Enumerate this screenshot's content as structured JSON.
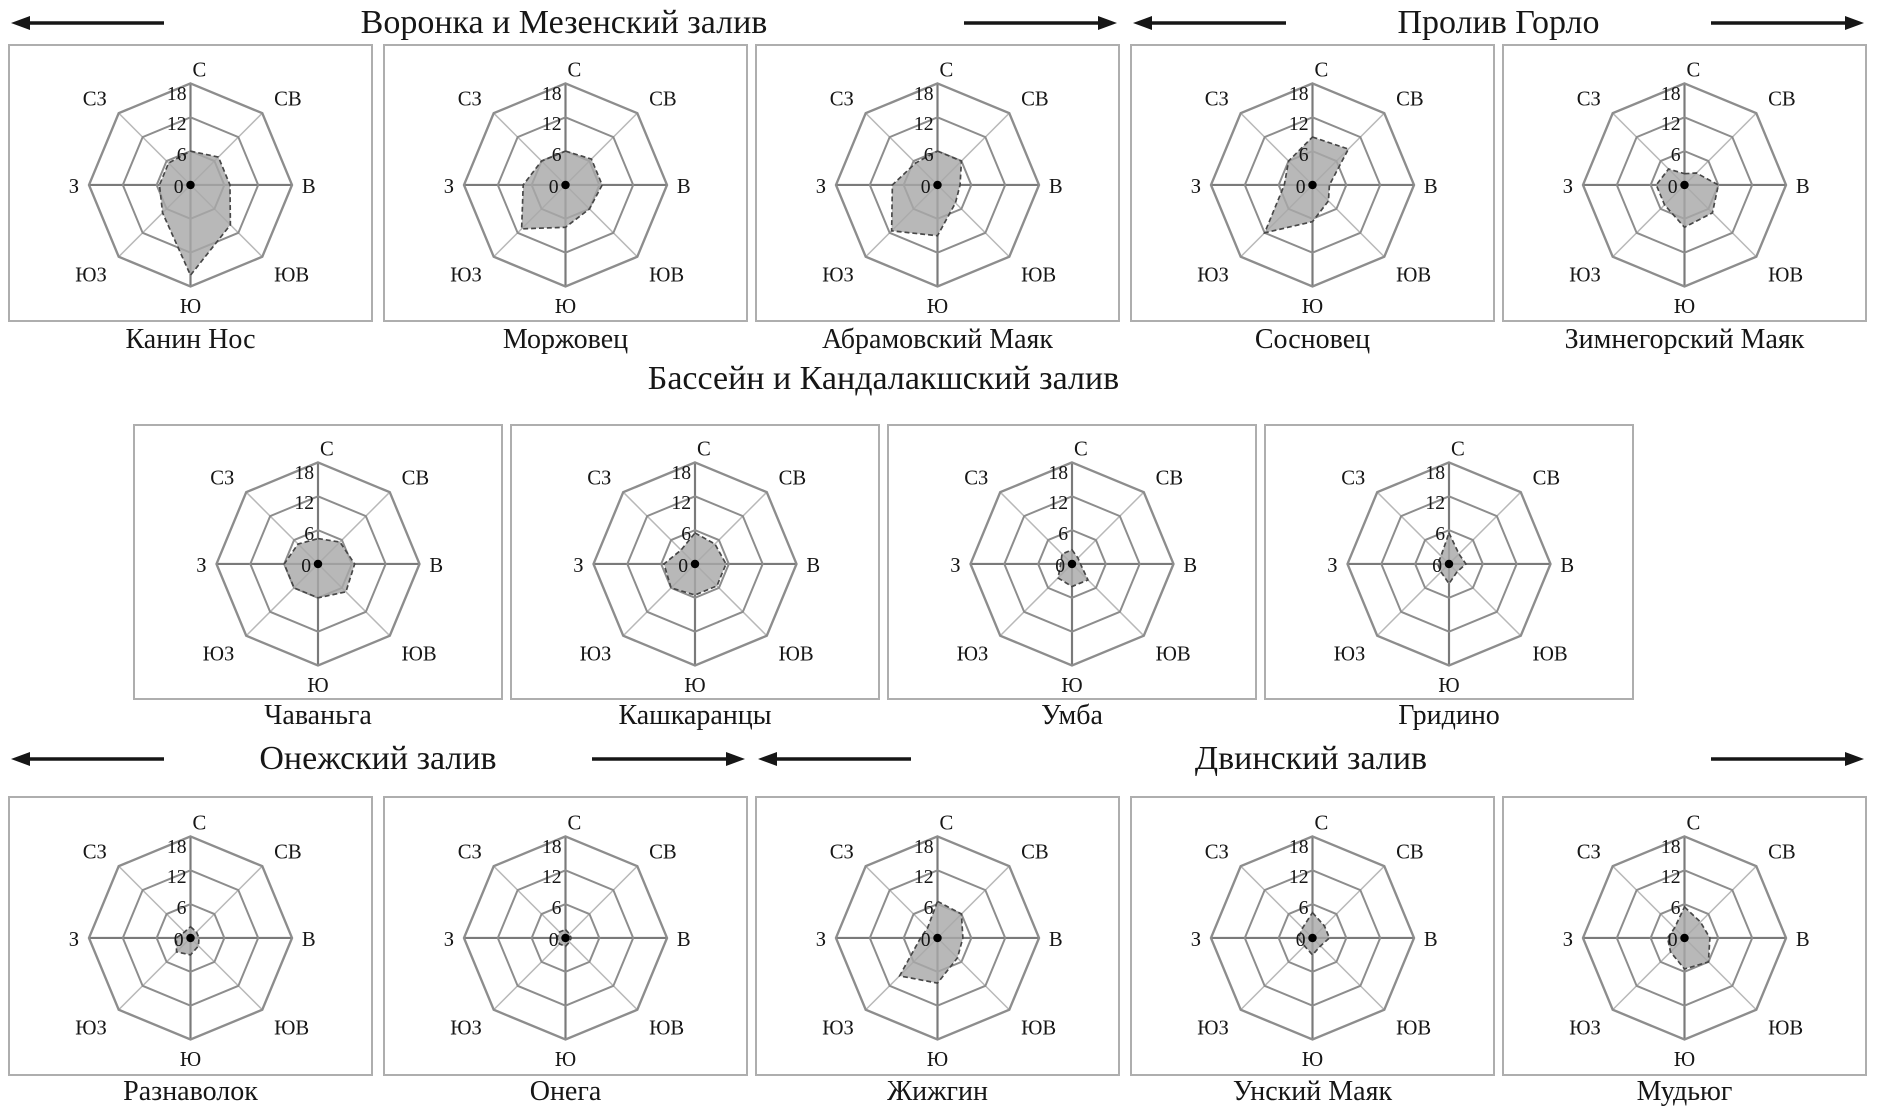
{
  "figure": {
    "directions": [
      "С",
      "СВ",
      "В",
      "ЮВ",
      "Ю",
      "ЮЗ",
      "З",
      "СЗ"
    ],
    "r_ticks": [
      0,
      6,
      12,
      18
    ],
    "r_max": 18,
    "colors": {
      "polygon_fill": "#a8a8a8",
      "polygon_stroke": "#474747",
      "ring_grid": "#8d8d8d",
      "main_axis": "#7a7a7a",
      "diagonal_axis": "#b8b8b8",
      "text": "#161616",
      "box_border": "#aeaeae"
    }
  },
  "regions": [
    {
      "title": "Воронка и Мезенский залив"
    },
    {
      "title": "Пролив Горло"
    },
    {
      "title": "Бассейн и Кандалакшский залив"
    },
    {
      "title": "Онежский залив"
    },
    {
      "title": "Двинский залив"
    }
  ],
  "chart_data": [
    {
      "type": "radar",
      "title": "Канин Нос",
      "region": "Воронка и Мезенский залив",
      "categories": [
        "С",
        "СВ",
        "В",
        "ЮВ",
        "Ю",
        "ЮЗ",
        "З",
        "СЗ"
      ],
      "values": [
        6,
        7,
        7,
        10,
        16,
        7,
        5.5,
        5.5
      ],
      "r_ticks": [
        0,
        6,
        12,
        18
      ],
      "r_max": 18
    },
    {
      "type": "radar",
      "title": "Моржовец",
      "region": "Воронка и Мезенский залив",
      "categories": [
        "С",
        "СВ",
        "В",
        "ЮВ",
        "Ю",
        "ЮЗ",
        "З",
        "СЗ"
      ],
      "values": [
        6,
        6.5,
        6.5,
        6,
        7.5,
        11,
        7.5,
        6
      ],
      "r_ticks": [
        0,
        6,
        12,
        18
      ],
      "r_max": 18
    },
    {
      "type": "radar",
      "title": "Абрамовский Маяк",
      "region": "Воронка и Мезенский залив",
      "categories": [
        "С",
        "СВ",
        "В",
        "ЮВ",
        "Ю",
        "ЮЗ",
        "З",
        "СЗ"
      ],
      "values": [
        6,
        6,
        4,
        4.5,
        9,
        11.5,
        8,
        5.5
      ],
      "r_ticks": [
        0,
        6,
        12,
        18
      ],
      "r_max": 18
    },
    {
      "type": "radar",
      "title": "Сосновец",
      "region": "Пролив Горло",
      "categories": [
        "С",
        "СВ",
        "В",
        "ЮВ",
        "Ю",
        "ЮЗ",
        "З",
        "СЗ"
      ],
      "values": [
        8.5,
        9,
        3,
        4,
        6.5,
        12,
        5,
        6
      ],
      "r_ticks": [
        0,
        6,
        12,
        18
      ],
      "r_max": 18
    },
    {
      "type": "radar",
      "title": "Зимнегорский Маяк",
      "region": "Пролив Горло",
      "categories": [
        "С",
        "СВ",
        "В",
        "ЮВ",
        "Ю",
        "ЮЗ",
        "З",
        "СЗ"
      ],
      "values": [
        2,
        3,
        6,
        7,
        7.5,
        5,
        5,
        4
      ],
      "r_ticks": [
        0,
        6,
        12,
        18
      ],
      "r_max": 18
    },
    {
      "type": "radar",
      "title": "Чаваньга",
      "region": "Бассейн и Кандалакшский залив",
      "categories": [
        "С",
        "СВ",
        "В",
        "ЮВ",
        "Ю",
        "ЮЗ",
        "З",
        "СЗ"
      ],
      "values": [
        4.5,
        5.5,
        6.5,
        7,
        6,
        6,
        6,
        5
      ],
      "r_ticks": [
        0,
        6,
        12,
        18
      ],
      "r_max": 18
    },
    {
      "type": "radar",
      "title": "Кашкаранцы",
      "region": "Бассейн и Кандалакшский залив",
      "categories": [
        "С",
        "СВ",
        "В",
        "ЮВ",
        "Ю",
        "ЮЗ",
        "З",
        "СЗ"
      ],
      "values": [
        5.5,
        5,
        5.5,
        5.5,
        5.5,
        6,
        5.5,
        3.5
      ],
      "r_ticks": [
        0,
        6,
        12,
        18
      ],
      "r_max": 18
    },
    {
      "type": "radar",
      "title": "Умба",
      "region": "Бассейн и Кандалакшский залив",
      "categories": [
        "С",
        "СВ",
        "В",
        "ЮВ",
        "Ю",
        "ЮЗ",
        "З",
        "СЗ"
      ],
      "values": [
        2.5,
        1.5,
        1.5,
        4,
        4,
        3.5,
        2,
        2.5
      ],
      "r_ticks": [
        0,
        6,
        12,
        18
      ],
      "r_max": 18
    },
    {
      "type": "radar",
      "title": "Гридино",
      "region": "Бассейн и Кандалакшский залив",
      "categories": [
        "С",
        "СВ",
        "В",
        "ЮВ",
        "Ю",
        "ЮЗ",
        "З",
        "СЗ"
      ],
      "values": [
        5.5,
        2.5,
        3,
        2,
        3.5,
        2,
        2,
        2
      ],
      "r_ticks": [
        0,
        6,
        12,
        18
      ],
      "r_max": 18
    },
    {
      "type": "radar",
      "title": "Разнаволок",
      "region": "Онежский залив",
      "categories": [
        "С",
        "СВ",
        "В",
        "ЮВ",
        "Ю",
        "ЮЗ",
        "З",
        "СЗ"
      ],
      "values": [
        2,
        1.5,
        1.5,
        2,
        3,
        3.5,
        2.5,
        1.5
      ],
      "r_ticks": [
        0,
        6,
        12,
        18
      ],
      "r_max": 18
    },
    {
      "type": "radar",
      "title": "Онега",
      "region": "Онежский залив",
      "categories": [
        "С",
        "СВ",
        "В",
        "ЮВ",
        "Ю",
        "ЮЗ",
        "З",
        "СЗ"
      ],
      "values": [
        1.5,
        1,
        1,
        1,
        1.5,
        1.5,
        1.5,
        1.5
      ],
      "r_ticks": [
        0,
        6,
        12,
        18
      ],
      "r_max": 18
    },
    {
      "type": "radar",
      "title": "Жижгин",
      "region": "Двинский залив",
      "categories": [
        "С",
        "СВ",
        "В",
        "ЮВ",
        "Ю",
        "ЮЗ",
        "З",
        "СЗ"
      ],
      "values": [
        6.5,
        6,
        4.5,
        5,
        8,
        9.5,
        3,
        2.5
      ],
      "r_ticks": [
        0,
        6,
        12,
        18
      ],
      "r_max": 18
    },
    {
      "type": "radar",
      "title": "Унский Маяк",
      "region": "Двинский залив",
      "categories": [
        "С",
        "СВ",
        "В",
        "ЮВ",
        "Ю",
        "ЮЗ",
        "З",
        "СЗ"
      ],
      "values": [
        4.5,
        3,
        3,
        2,
        3,
        2,
        2.5,
        2.5
      ],
      "r_ticks": [
        0,
        6,
        12,
        18
      ],
      "r_max": 18
    },
    {
      "type": "radar",
      "title": "Мудьюг",
      "region": "Двинский залив",
      "categories": [
        "С",
        "СВ",
        "В",
        "ЮВ",
        "Ю",
        "ЮЗ",
        "З",
        "СЗ"
      ],
      "values": [
        5.5,
        4,
        4.5,
        6,
        5.5,
        3.5,
        3,
        2.5
      ],
      "r_ticks": [
        0,
        6,
        12,
        18
      ],
      "r_max": 18
    }
  ]
}
